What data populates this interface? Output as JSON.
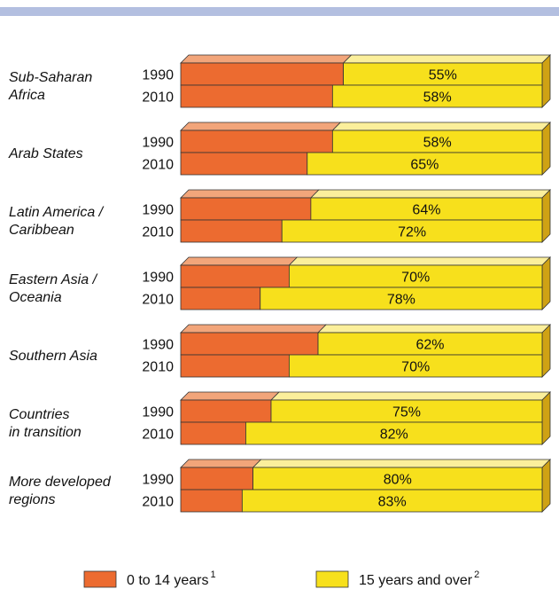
{
  "chart_data": {
    "type": "bar",
    "stacked": true,
    "percent_stacked": true,
    "categories": [
      {
        "region": [
          "Sub-Saharan",
          "Africa"
        ],
        "years": [
          "1990",
          "2010"
        ]
      },
      {
        "region": [
          "Arab States"
        ],
        "years": [
          "1990",
          "2010"
        ]
      },
      {
        "region": [
          "Latin America /",
          "Caribbean"
        ],
        "years": [
          "1990",
          "2010"
        ]
      },
      {
        "region": [
          "Eastern Asia /",
          "Oceania"
        ],
        "years": [
          "1990",
          "2010"
        ]
      },
      {
        "region": [
          "Southern Asia"
        ],
        "years": [
          "1990",
          "2010"
        ]
      },
      {
        "region": [
          "Countries",
          "in transition"
        ],
        "years": [
          "1990",
          "2010"
        ]
      },
      {
        "region": [
          "More developed",
          "regions"
        ],
        "years": [
          "1990",
          "2010"
        ]
      }
    ],
    "series": [
      {
        "name": "0 to 14 years",
        "values": [
          [
            45,
            42
          ],
          [
            42,
            35
          ],
          [
            36,
            28
          ],
          [
            30,
            22
          ],
          [
            38,
            30
          ],
          [
            25,
            18
          ],
          [
            20,
            17
          ]
        ]
      },
      {
        "name": "15 years and over",
        "values": [
          [
            55,
            58
          ],
          [
            58,
            65
          ],
          [
            64,
            72
          ],
          [
            70,
            78
          ],
          [
            62,
            70
          ],
          [
            75,
            82
          ],
          [
            80,
            83
          ]
        ]
      }
    ],
    "value_labels": [
      [
        "55%",
        "58%"
      ],
      [
        "58%",
        "65%"
      ],
      [
        "64%",
        "72%"
      ],
      [
        "70%",
        "78%"
      ],
      [
        "62%",
        "70%"
      ],
      [
        "75%",
        "82%"
      ],
      [
        "80%",
        "83%"
      ]
    ],
    "colors": {
      "young": "#ec6b30",
      "young_top": "#f2a57a",
      "adult": "#f7e01c",
      "adult_top": "#fbef9b",
      "side": "#cfa214",
      "top_rule": "#b3bfe0"
    },
    "xlim": [
      0,
      100
    ],
    "legend": {
      "placement": "bottom",
      "items": [
        {
          "label": "0 to 14 years",
          "sup": "1"
        },
        {
          "label": "15 years and over",
          "sup": "2"
        }
      ]
    }
  }
}
